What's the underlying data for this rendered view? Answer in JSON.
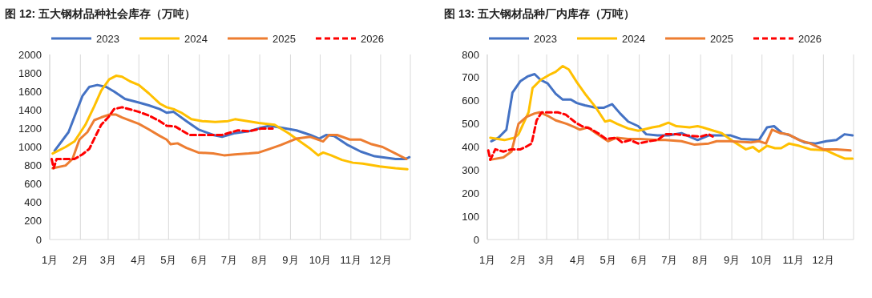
{
  "chart_data": [
    {
      "type": "line",
      "title": "图 12:  五大钢材品种社会库存（万吨）",
      "xlim": [
        "--01-01",
        "--12-31"
      ],
      "xticks": [
        {
          "value": "--01-01",
          "label": "1月"
        },
        {
          "value": "--02-01",
          "label": "2月"
        },
        {
          "value": "--03-01",
          "label": "3月"
        },
        {
          "value": "--04-01",
          "label": "4月"
        },
        {
          "value": "--05-01",
          "label": "5月"
        },
        {
          "value": "--06-01",
          "label": "6月"
        },
        {
          "value": "--07-01",
          "label": "7月"
        },
        {
          "value": "--08-01",
          "label": "8月"
        },
        {
          "value": "--09-01",
          "label": "9月"
        },
        {
          "value": "--10-01",
          "label": "10月"
        },
        {
          "value": "--11-01",
          "label": "11月"
        },
        {
          "value": "--12-01",
          "label": "12月"
        }
      ],
      "ylim": [
        0,
        2000
      ],
      "yticks": [
        0,
        200,
        400,
        600,
        800,
        1000,
        1200,
        1400,
        1600,
        1800,
        2000
      ],
      "grid": "x",
      "legend": "top",
      "series": [
        {
          "name": "2023",
          "color": "#4472c4",
          "line_style": "solid",
          "x": [
            "--01-06",
            "--01-20",
            "--02-03",
            "--02-10",
            "--02-18",
            "--02-27",
            "--03-07",
            "--03-18",
            "--04-01",
            "--04-11",
            "--04-22",
            "--04-29",
            "--05-06",
            "--05-19",
            "--05-31",
            "--06-15",
            "--06-24",
            "--07-07",
            "--07-21",
            "--08-03",
            "--08-11",
            "--08-22",
            "--09-07",
            "--09-21",
            "--09-30",
            "--10-07",
            "--10-15",
            "--10-29",
            "--11-11",
            "--11-25",
            "--12-16",
            "--12-26",
            "--12-30"
          ],
          "values": [
            960,
            1160,
            1550,
            1650,
            1670,
            1650,
            1600,
            1520,
            1480,
            1450,
            1410,
            1370,
            1380,
            1280,
            1190,
            1130,
            1110,
            1150,
            1170,
            1210,
            1230,
            1210,
            1180,
            1130,
            1090,
            1130,
            1120,
            1020,
            950,
            900,
            870,
            870,
            890
          ]
        },
        {
          "name": "2024",
          "color": "#ffc000",
          "line_style": "solid",
          "x": [
            "--01-04",
            "--01-17",
            "--01-26",
            "--02-06",
            "--02-15",
            "--02-22",
            "--03-02",
            "--03-09",
            "--03-15",
            "--03-23",
            "--04-01",
            "--04-11",
            "--04-22",
            "--04-29",
            "--05-06",
            "--05-14",
            "--05-24",
            "--06-04",
            "--06-17",
            "--06-30",
            "--07-07",
            "--07-31",
            "--08-16",
            "--08-30",
            "--09-12",
            "--09-20",
            "--09-29",
            "--10-04",
            "--10-12",
            "--10-23",
            "--11-03",
            "--11-13",
            "--11-30",
            "--12-16",
            "--12-28"
          ],
          "values": [
            930,
            1000,
            1060,
            1240,
            1440,
            1610,
            1730,
            1770,
            1760,
            1710,
            1670,
            1580,
            1470,
            1430,
            1410,
            1370,
            1300,
            1280,
            1270,
            1280,
            1300,
            1260,
            1240,
            1150,
            1050,
            990,
            910,
            940,
            910,
            860,
            830,
            820,
            790,
            770,
            760
          ]
        },
        {
          "name": "2025",
          "color": "#ed7d31",
          "line_style": "solid",
          "x": [
            "--01-04",
            "--01-17",
            "--01-24",
            "--01-31",
            "--02-08",
            "--02-15",
            "--02-22",
            "--03-02",
            "--03-09",
            "--03-15",
            "--04-01",
            "--04-11",
            "--04-22",
            "--04-29",
            "--05-03",
            "--05-10",
            "--05-19",
            "--05-31",
            "--06-15",
            "--06-26",
            "--07-07",
            "--07-21",
            "--07-31",
            "--08-11",
            "--08-22",
            "--09-07",
            "--09-21",
            "--10-04",
            "--10-10",
            "--10-18",
            "--10-31",
            "--11-11",
            "--11-22",
            "--12-03",
            "--12-16",
            "--12-27"
          ],
          "values": [
            770,
            800,
            870,
            1080,
            1160,
            1290,
            1320,
            1350,
            1350,
            1320,
            1250,
            1190,
            1120,
            1080,
            1030,
            1040,
            990,
            940,
            930,
            910,
            920,
            930,
            940,
            980,
            1020,
            1090,
            1110,
            1060,
            1130,
            1130,
            1080,
            1080,
            1030,
            1000,
            930,
            870
          ]
        },
        {
          "name": "2026",
          "color": "#ff0000",
          "line_style": "dashed",
          "x": [
            "--01-03",
            "--01-05",
            "--01-08",
            "--01-15",
            "--01-26",
            "--02-03",
            "--02-10",
            "--02-15",
            "--02-22",
            "--03-01",
            "--03-07",
            "--03-15",
            "--04-01",
            "--04-11",
            "--04-22",
            "--04-29",
            "--05-08",
            "--05-22",
            "--06-04",
            "--06-17",
            "--06-24",
            "--07-10",
            "--07-21",
            "--08-03",
            "--08-14"
          ],
          "values": [
            870,
            770,
            870,
            870,
            870,
            920,
            980,
            1090,
            1240,
            1320,
            1410,
            1430,
            1380,
            1340,
            1280,
            1230,
            1220,
            1130,
            1130,
            1130,
            1130,
            1180,
            1170,
            1200,
            1200
          ]
        }
      ]
    },
    {
      "type": "line",
      "title": "图 13:  五大钢材品种厂内库存（万吨）",
      "xlim": [
        "--01-01",
        "--12-31"
      ],
      "xticks": [
        {
          "value": "--01-01",
          "label": "1月"
        },
        {
          "value": "--02-01",
          "label": "2月"
        },
        {
          "value": "--03-01",
          "label": "3月"
        },
        {
          "value": "--04-01",
          "label": "4月"
        },
        {
          "value": "--05-01",
          "label": "5月"
        },
        {
          "value": "--06-01",
          "label": "6月"
        },
        {
          "value": "--07-01",
          "label": "7月"
        },
        {
          "value": "--08-01",
          "label": "8月"
        },
        {
          "value": "--09-01",
          "label": "9月"
        },
        {
          "value": "--10-01",
          "label": "10月"
        },
        {
          "value": "--11-01",
          "label": "11月"
        },
        {
          "value": "--12-01",
          "label": "12月"
        }
      ],
      "ylim": [
        0,
        800
      ],
      "yticks": [
        0,
        100,
        200,
        300,
        400,
        500,
        600,
        700,
        800
      ],
      "grid": "x",
      "legend": "top",
      "series": [
        {
          "name": "2023",
          "color": "#4472c4",
          "line_style": "solid",
          "x": [
            "--01-05",
            "--01-12",
            "--01-20",
            "--01-26",
            "--02-03",
            "--02-10",
            "--02-17",
            "--02-23",
            "--03-02",
            "--03-10",
            "--03-17",
            "--03-25",
            "--03-31",
            "--04-08",
            "--04-19",
            "--04-27",
            "--05-05",
            "--05-13",
            "--05-21",
            "--05-31",
            "--06-08",
            "--06-19",
            "--06-30",
            "--07-13",
            "--07-29",
            "--08-09",
            "--08-19",
            "--08-31",
            "--09-10",
            "--09-28",
            "--10-06",
            "--10-13",
            "--10-21",
            "--10-29",
            "--11-12",
            "--11-23",
            "--12-04",
            "--12-14",
            "--12-22",
            "--12-30"
          ],
          "values": [
            425,
            440,
            475,
            635,
            685,
            705,
            715,
            690,
            675,
            630,
            605,
            605,
            590,
            580,
            570,
            570,
            585,
            545,
            510,
            490,
            455,
            450,
            450,
            460,
            430,
            450,
            450,
            450,
            435,
            430,
            485,
            490,
            460,
            450,
            420,
            415,
            425,
            430,
            455,
            450
          ]
        },
        {
          "name": "2024",
          "color": "#ffc000",
          "line_style": "solid",
          "x": [
            "--01-04",
            "--01-18",
            "--01-28",
            "--02-01",
            "--02-11",
            "--02-15",
            "--02-23",
            "--03-05",
            "--03-10",
            "--03-17",
            "--03-23",
            "--03-31",
            "--04-09",
            "--04-19",
            "--04-28",
            "--05-03",
            "--05-10",
            "--05-21",
            "--05-31",
            "--06-14",
            "--06-21",
            "--06-30",
            "--07-08",
            "--07-21",
            "--07-29",
            "--08-03",
            "--08-14",
            "--08-22",
            "--09-02",
            "--09-15",
            "--09-22",
            "--09-28",
            "--10-06",
            "--10-14",
            "--10-20",
            "--10-28",
            "--11-07",
            "--11-18",
            "--12-04",
            "--12-14",
            "--12-22",
            "--12-30"
          ],
          "values": [
            440,
            430,
            440,
            455,
            550,
            655,
            690,
            715,
            725,
            750,
            735,
            680,
            625,
            570,
            510,
            515,
            500,
            480,
            470,
            485,
            490,
            505,
            490,
            485,
            490,
            485,
            470,
            460,
            425,
            390,
            400,
            380,
            405,
            395,
            395,
            415,
            405,
            390,
            385,
            365,
            350,
            350
          ]
        },
        {
          "name": "2025",
          "color": "#ed7d31",
          "line_style": "solid",
          "x": [
            "--01-04",
            "--01-17",
            "--01-25",
            "--02-01",
            "--02-09",
            "--02-17",
            "--02-22",
            "--03-02",
            "--03-10",
            "--03-21",
            "--03-29",
            "--04-03",
            "--04-11",
            "--04-19",
            "--05-01",
            "--05-10",
            "--05-21",
            "--06-02",
            "--06-19",
            "--06-27",
            "--07-13",
            "--07-26",
            "--08-09",
            "--08-17",
            "--08-30",
            "--09-20",
            "--09-28",
            "--10-05",
            "--10-11",
            "--10-19",
            "--10-27",
            "--11-07",
            "--11-18",
            "--12-01",
            "--12-14",
            "--12-28"
          ],
          "values": [
            345,
            355,
            380,
            500,
            530,
            545,
            550,
            535,
            515,
            500,
            485,
            475,
            485,
            460,
            425,
            440,
            435,
            435,
            430,
            430,
            425,
            410,
            415,
            425,
            425,
            420,
            425,
            415,
            475,
            460,
            455,
            430,
            415,
            390,
            390,
            385
          ]
        },
        {
          "name": "2026",
          "color": "#ff0000",
          "line_style": "dashed",
          "x": [
            "--01-02",
            "--01-04",
            "--01-09",
            "--01-17",
            "--01-25",
            "--02-03",
            "--02-08",
            "--02-14",
            "--02-19",
            "--02-24",
            "--03-04",
            "--03-12",
            "--03-20",
            "--03-30",
            "--04-05",
            "--04-13",
            "--04-21",
            "--04-29",
            "--05-09",
            "--05-15",
            "--05-23",
            "--05-31",
            "--06-11",
            "--06-19",
            "--06-27",
            "--07-08",
            "--07-18",
            "--08-01",
            "--08-09",
            "--08-13"
          ],
          "values": [
            385,
            345,
            390,
            380,
            390,
            390,
            400,
            415,
            515,
            550,
            550,
            550,
            540,
            505,
            490,
            480,
            460,
            435,
            440,
            420,
            430,
            415,
            425,
            430,
            455,
            455,
            450,
            445,
            455,
            445
          ]
        }
      ]
    }
  ]
}
